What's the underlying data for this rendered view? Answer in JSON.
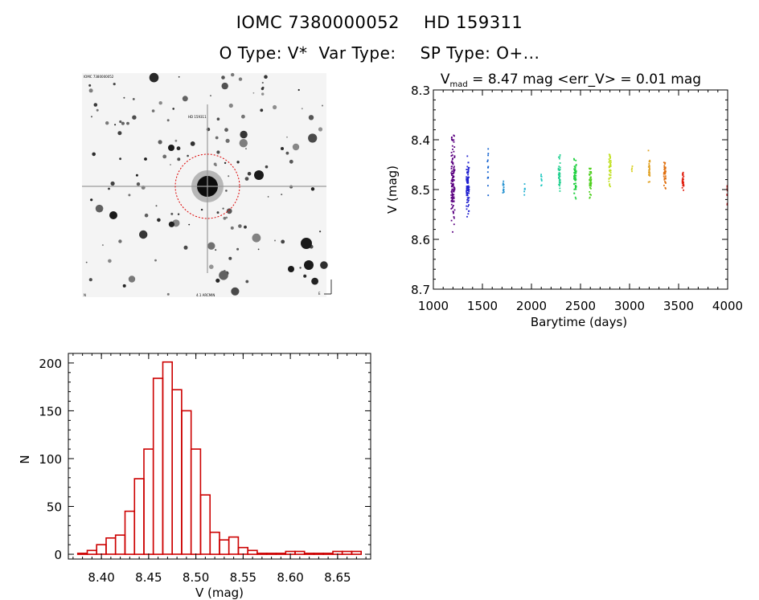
{
  "header": {
    "catalog_id": "IOMC 7380000052",
    "hd_id": "HD 159311",
    "o_type": "O Type: V*",
    "var_type": "Var Type:",
    "sp_type": "SP Type: O+..."
  },
  "image_panel": {
    "top_left_label": "IOMC 7380000052",
    "marker_label": "HD 159311",
    "bottom_center_label": "4.1 ARCMIN",
    "bottom_left_label": "N",
    "bottom_right_label": "E"
  },
  "chart_data": [
    {
      "type": "scatter",
      "title_main": "V",
      "title_sub": "mad",
      "title_rest": " = 8.47 mag <err_V> = 0.01 mag",
      "xlabel": "Barytime (days)",
      "ylabel": "V (mag)",
      "xlim": [
        1000,
        4000
      ],
      "ylim": [
        8.3,
        8.7
      ],
      "y_inverted": true,
      "xticks": [
        1000,
        1500,
        2000,
        2500,
        3000,
        3500,
        4000
      ],
      "xtick_labels": [
        "1000",
        "1500",
        "2000",
        "2500",
        "3000",
        "3500",
        "4000"
      ],
      "yticks": [
        8.3,
        8.4,
        8.5,
        8.6,
        8.7
      ],
      "ytick_labels": [
        "8.3",
        "8.4",
        "8.5",
        "8.6",
        "8.7"
      ],
      "groups": [
        {
          "x_center": 1200,
          "x_spread": 18,
          "y_center": 8.48,
          "y_spread": 0.12,
          "count": 120,
          "color": "#5a0080"
        },
        {
          "x_center": 1350,
          "x_spread": 14,
          "y_center": 8.49,
          "y_spread": 0.07,
          "count": 90,
          "color": "#2020d0"
        },
        {
          "x_center": 1555,
          "x_spread": 6,
          "y_center": 8.46,
          "y_spread": 0.08,
          "count": 14,
          "color": "#1060d0"
        },
        {
          "x_center": 1715,
          "x_spread": 6,
          "y_center": 8.5,
          "y_spread": 0.02,
          "count": 12,
          "color": "#2090d0"
        },
        {
          "x_center": 1930,
          "x_spread": 5,
          "y_center": 8.5,
          "y_spread": 0.02,
          "count": 6,
          "color": "#20b0d0"
        },
        {
          "x_center": 2100,
          "x_spread": 5,
          "y_center": 8.48,
          "y_spread": 0.03,
          "count": 8,
          "color": "#20c8c0"
        },
        {
          "x_center": 2285,
          "x_spread": 10,
          "y_center": 8.47,
          "y_spread": 0.05,
          "count": 40,
          "color": "#20d090"
        },
        {
          "x_center": 2445,
          "x_spread": 12,
          "y_center": 8.48,
          "y_spread": 0.06,
          "count": 55,
          "color": "#20d040"
        },
        {
          "x_center": 2600,
          "x_spread": 10,
          "y_center": 8.48,
          "y_spread": 0.05,
          "count": 40,
          "color": "#50d020"
        },
        {
          "x_center": 2800,
          "x_spread": 10,
          "y_center": 8.46,
          "y_spread": 0.05,
          "count": 40,
          "color": "#c0e020"
        },
        {
          "x_center": 3025,
          "x_spread": 4,
          "y_center": 8.46,
          "y_spread": 0.01,
          "count": 4,
          "color": "#d8d020"
        },
        {
          "x_center": 3200,
          "x_spread": 8,
          "y_center": 8.46,
          "y_spread": 0.05,
          "count": 25,
          "color": "#e0a020"
        },
        {
          "x_center": 3360,
          "x_spread": 10,
          "y_center": 8.47,
          "y_spread": 0.04,
          "count": 40,
          "color": "#e07010"
        },
        {
          "x_center": 3545,
          "x_spread": 8,
          "y_center": 8.48,
          "y_spread": 0.03,
          "count": 25,
          "color": "#e02010"
        },
        {
          "x_center": 3995,
          "x_spread": 3,
          "y_center": 8.51,
          "y_spread": 0.05,
          "count": 8,
          "color": "#c01010"
        }
      ]
    },
    {
      "type": "bar",
      "subtype": "histogram",
      "xlabel": "V (mag)",
      "ylabel": "N",
      "xlim": [
        8.365,
        8.685
      ],
      "ylim": [
        -5,
        210
      ],
      "bin_width": 0.01,
      "bin_starts": [
        8.375,
        8.385,
        8.395,
        8.405,
        8.415,
        8.425,
        8.435,
        8.445,
        8.455,
        8.465,
        8.475,
        8.485,
        8.495,
        8.505,
        8.515,
        8.525,
        8.535,
        8.545,
        8.555,
        8.565,
        8.575,
        8.585,
        8.595,
        8.605,
        8.615,
        8.625,
        8.635,
        8.645,
        8.655,
        8.665
      ],
      "values": [
        1,
        4,
        10,
        17,
        20,
        45,
        79,
        110,
        184,
        201,
        172,
        150,
        110,
        62,
        23,
        15,
        18,
        7,
        4,
        1,
        1,
        1,
        3,
        3,
        1,
        1,
        1,
        3,
        3,
        3
      ],
      "xticks": [
        8.4,
        8.45,
        8.5,
        8.55,
        8.6,
        8.65
      ],
      "xtick_labels": [
        "8.40",
        "8.45",
        "8.50",
        "8.55",
        "8.60",
        "8.65"
      ],
      "yticks": [
        0,
        50,
        100,
        150,
        200
      ],
      "ytick_labels": [
        "0",
        "50",
        "100",
        "150",
        "200"
      ],
      "bar_color": "#cc0000"
    }
  ]
}
